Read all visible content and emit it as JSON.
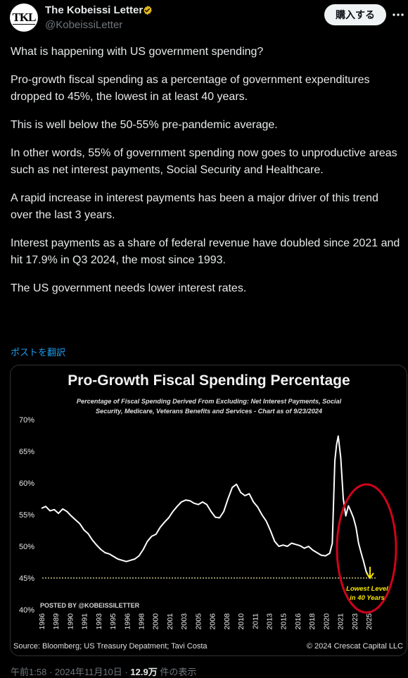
{
  "header": {
    "avatar_text": "TKL",
    "name": "The Kobeissi Letter",
    "handle": "@KobeissiLetter",
    "buy_label": "購入する"
  },
  "tweet": {
    "paragraphs": [
      "What is happening with US government spending?",
      "Pro-growth fiscal spending as a percentage of government expenditures dropped to 45%, the lowest in at least 40 years.",
      "This is well below the 50-55% pre-pandemic average.",
      "In other words, 55% of government spending now goes to unproductive areas such as net interest payments, Social Security and Healthcare.",
      "A rapid increase in interest payments has been a major driver of this trend over the last 3 years.",
      "Interest payments as a share of federal revenue have doubled since 2021 and hit 17.9% in Q3 2024, the most since 1993.",
      "The US government needs lower interest rates."
    ],
    "translate_label": "ポストを翻訳"
  },
  "meta": {
    "time": "午前1:58",
    "date": "2024年11月10日",
    "views": "12.9万",
    "views_label": "件の表示",
    "sep": "·"
  },
  "colors": {
    "accent_blue": "#1d9bf0",
    "verified_gold": "#e2b719",
    "ellipse_red": "#d0021b",
    "arrow_yellow": "#f5e400"
  },
  "icons": {
    "verified": "verified-badge-icon",
    "more": "more-dots-icon"
  },
  "chart_data": {
    "type": "line",
    "title": "Pro-Growth Fiscal Spending Percentage",
    "subtitle_line1": "Percentage of Fiscal Spending Derived From Excluding:  Net Interest Payments, Social",
    "subtitle_line2": "Security, Medicare, Veterans Benefits and Services - Chart as of 9/23/2024",
    "ylim": [
      40,
      70
    ],
    "yticks": [
      40,
      45,
      50,
      55,
      60,
      65,
      70
    ],
    "ytick_labels": [
      "40%",
      "45%",
      "50%",
      "55%",
      "60%",
      "65%",
      "70%"
    ],
    "xlim": [
      1986,
      2025
    ],
    "xticks": [
      "1986",
      "1989",
      "1990",
      "1991",
      "1993",
      "1995",
      "1996",
      "1998",
      "2000",
      "2001",
      "2003",
      "2005",
      "2006",
      "2008",
      "2010",
      "2011",
      "2013",
      "2015",
      "2016",
      "2018",
      "2020",
      "2021",
      "2023",
      "2025"
    ],
    "reference_line": 45,
    "annotation": {
      "line1": "Lowest Level",
      "line2": "in 40 Years"
    },
    "posted_by": "POSTED BY @KOBEISSILETTER",
    "source": "Source: Bloomberg; US Treasury Depatment; Tavi Costa",
    "copyright": "© 2024 Crescat Capital LLC",
    "series": [
      {
        "x": [
          1986,
          1986.5,
          1987,
          1987.5,
          1988,
          1988.5,
          1989,
          1989.5,
          1990,
          1990.5,
          1991,
          1991.5,
          1992,
          1992.5,
          1993,
          1993.5,
          1994,
          1994.5,
          1995,
          1995.5,
          1996,
          1996.5,
          1997,
          1997.5,
          1998,
          1998.5,
          1999,
          1999.5,
          2000,
          2000.5,
          2001,
          2001.5,
          2002,
          2002.5,
          2003,
          2003.5,
          2004,
          2004.5,
          2005,
          2005.5,
          2006,
          2006.5,
          2007,
          2007.5,
          2008,
          2008.5,
          2009,
          2009.5,
          2010,
          2010.5,
          2011,
          2011.5,
          2012,
          2012.5,
          2013,
          2013.5,
          2014,
          2014.5,
          2015,
          2015.5,
          2016,
          2016.5,
          2017,
          2017.5,
          2018,
          2018.5,
          2019,
          2019.5,
          2020,
          2020.3,
          2020.6,
          2020.8,
          2021,
          2021.3,
          2021.6,
          2021.9,
          2022.2,
          2022.5,
          2022.8,
          2023.1,
          2023.4,
          2023.7,
          2024.0,
          2024.3,
          2024.7
        ],
        "values": [
          56,
          56.3,
          55.6,
          55.8,
          55.2,
          55.9,
          55.5,
          54.8,
          54.2,
          53.6,
          52.6,
          52.0,
          51.0,
          50.2,
          49.5,
          49.0,
          48.8,
          48.4,
          48.0,
          47.8,
          47.6,
          47.8,
          48.0,
          48.5,
          49.5,
          50.8,
          51.6,
          51.9,
          53.0,
          53.8,
          54.5,
          55.5,
          56.3,
          57.0,
          57.3,
          57.2,
          56.8,
          56.6,
          57.0,
          56.6,
          55.5,
          54.6,
          54.5,
          55.5,
          57.5,
          59.3,
          59.8,
          58.5,
          58.0,
          58.3,
          57.0,
          56.2,
          55.0,
          54.0,
          52.5,
          50.8,
          50.0,
          50.2,
          50.0,
          50.5,
          50.3,
          50.1,
          49.7,
          50.0,
          49.4,
          49.0,
          48.6,
          48.5,
          48.9,
          50.5,
          63.5,
          66.0,
          67.4,
          64.0,
          57.5,
          54.8,
          56.4,
          55.5,
          54.5,
          53.0,
          50.5,
          49.0,
          47.6,
          46.0,
          45.0
        ]
      }
    ]
  }
}
